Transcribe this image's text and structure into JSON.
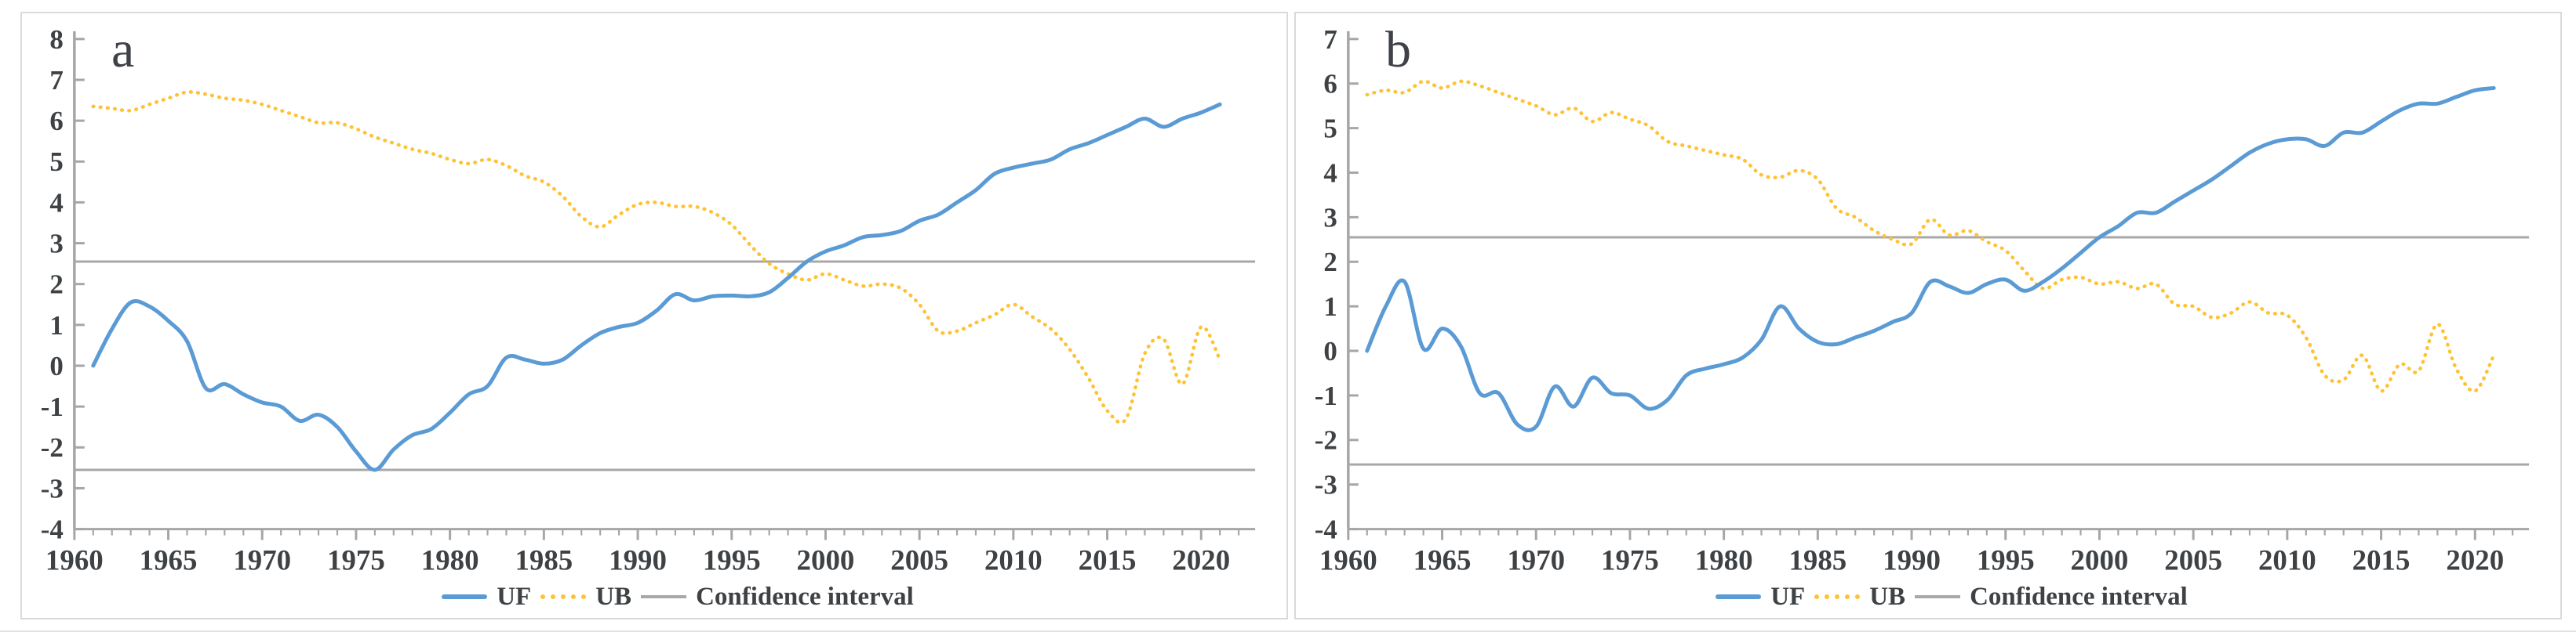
{
  "colors": {
    "uf": "#5b9bd5",
    "ub": "#ffc233",
    "ci": "#a8a8a8",
    "axis": "#a6a6a6",
    "tick_text": "#3f4245",
    "panel_border": "#dadada"
  },
  "legend": {
    "uf": "UF",
    "ub": "UB",
    "ci": "Confidence interval"
  },
  "chart_data": [
    {
      "type": "line",
      "panel_label": "a",
      "xlim": [
        1960,
        2022
      ],
      "ylim": [
        -4,
        8
      ],
      "yticks": [
        8,
        7,
        6,
        5,
        4,
        3,
        2,
        1,
        0,
        -1,
        -2,
        -3,
        -4
      ],
      "xticks": [
        1960,
        1965,
        1970,
        1975,
        1980,
        1985,
        1990,
        1995,
        2000,
        2005,
        2010,
        2015,
        2020
      ],
      "grid": false,
      "legend_position": "bottom",
      "confidence_interval": {
        "upper": 2.55,
        "lower": -2.55
      },
      "years": [
        1961,
        1962,
        1963,
        1964,
        1965,
        1966,
        1967,
        1968,
        1969,
        1970,
        1971,
        1972,
        1973,
        1974,
        1975,
        1976,
        1977,
        1978,
        1979,
        1980,
        1981,
        1982,
        1983,
        1984,
        1985,
        1986,
        1987,
        1988,
        1989,
        1990,
        1991,
        1992,
        1993,
        1994,
        1995,
        1996,
        1997,
        1998,
        1999,
        2000,
        2001,
        2002,
        2003,
        2004,
        2005,
        2006,
        2007,
        2008,
        2009,
        2010,
        2011,
        2012,
        2013,
        2014,
        2015,
        2016,
        2017,
        2018,
        2019,
        2020,
        2021
      ],
      "series": [
        {
          "name": "UF",
          "style": "solid",
          "color_key": "uf",
          "values": [
            0.0,
            0.9,
            1.55,
            1.45,
            1.1,
            0.6,
            -0.55,
            -0.45,
            -0.7,
            -0.9,
            -1.0,
            -1.35,
            -1.2,
            -1.5,
            -2.1,
            -2.55,
            -2.05,
            -1.7,
            -1.55,
            -1.15,
            -0.7,
            -0.5,
            0.2,
            0.15,
            0.05,
            0.15,
            0.5,
            0.8,
            0.95,
            1.05,
            1.35,
            1.75,
            1.6,
            1.7,
            1.72,
            1.7,
            1.8,
            2.15,
            2.55,
            2.8,
            2.95,
            3.15,
            3.2,
            3.3,
            3.55,
            3.7,
            4.0,
            4.3,
            4.7,
            4.85,
            4.95,
            5.05,
            5.3,
            5.45,
            5.65,
            5.85,
            6.05,
            5.85,
            6.05,
            6.2,
            6.4
          ]
        },
        {
          "name": "UB",
          "style": "dotted",
          "color_key": "ub",
          "values": [
            6.35,
            6.3,
            6.25,
            6.4,
            6.55,
            6.7,
            6.65,
            6.55,
            6.5,
            6.4,
            6.25,
            6.1,
            5.95,
            5.95,
            5.8,
            5.6,
            5.45,
            5.3,
            5.2,
            5.05,
            4.95,
            5.05,
            4.9,
            4.65,
            4.5,
            4.15,
            3.65,
            3.4,
            3.7,
            3.95,
            4.0,
            3.9,
            3.9,
            3.75,
            3.45,
            2.95,
            2.5,
            2.25,
            2.1,
            2.25,
            2.1,
            1.95,
            2.0,
            1.9,
            1.5,
            0.85,
            0.85,
            1.05,
            1.25,
            1.5,
            1.2,
            0.9,
            0.4,
            -0.3,
            -1.1,
            -1.3,
            0.3,
            0.65,
            -0.45,
            0.95,
            0.15
          ]
        }
      ]
    },
    {
      "type": "line",
      "panel_label": "b",
      "xlim": [
        1960,
        2022
      ],
      "ylim": [
        -4,
        7
      ],
      "yticks": [
        7,
        6,
        5,
        4,
        3,
        2,
        1,
        0,
        -1,
        -2,
        -3,
        -4
      ],
      "xticks": [
        1960,
        1965,
        1970,
        1975,
        1980,
        1985,
        1990,
        1995,
        2000,
        2005,
        2010,
        2015,
        2020
      ],
      "grid": false,
      "legend_position": "bottom",
      "confidence_interval": {
        "upper": 2.55,
        "lower": -2.55
      },
      "years": [
        1961,
        1962,
        1963,
        1964,
        1965,
        1966,
        1967,
        1968,
        1969,
        1970,
        1971,
        1972,
        1973,
        1974,
        1975,
        1976,
        1977,
        1978,
        1979,
        1980,
        1981,
        1982,
        1983,
        1984,
        1985,
        1986,
        1987,
        1988,
        1989,
        1990,
        1991,
        1992,
        1993,
        1994,
        1995,
        1996,
        1997,
        1998,
        1999,
        2000,
        2001,
        2002,
        2003,
        2004,
        2005,
        2006,
        2007,
        2008,
        2009,
        2010,
        2011,
        2012,
        2013,
        2014,
        2015,
        2016,
        2017,
        2018,
        2019,
        2020,
        2021
      ],
      "series": [
        {
          "name": "UF",
          "style": "solid",
          "color_key": "uf",
          "values": [
            0.0,
            1.0,
            1.55,
            0.05,
            0.5,
            0.1,
            -0.95,
            -0.95,
            -1.65,
            -1.7,
            -0.8,
            -1.25,
            -0.6,
            -0.95,
            -1.0,
            -1.3,
            -1.1,
            -0.55,
            -0.4,
            -0.3,
            -0.15,
            0.25,
            1.0,
            0.5,
            0.2,
            0.15,
            0.3,
            0.45,
            0.65,
            0.85,
            1.55,
            1.45,
            1.3,
            1.5,
            1.6,
            1.35,
            1.55,
            1.85,
            2.2,
            2.55,
            2.8,
            3.1,
            3.1,
            3.35,
            3.6,
            3.85,
            4.15,
            4.45,
            4.65,
            4.75,
            4.75,
            4.6,
            4.9,
            4.9,
            5.15,
            5.4,
            5.55,
            5.55,
            5.7,
            5.85,
            5.9
          ]
        },
        {
          "name": "UB",
          "style": "dotted",
          "color_key": "ub",
          "values": [
            5.75,
            5.85,
            5.8,
            6.05,
            5.9,
            6.05,
            5.95,
            5.8,
            5.65,
            5.5,
            5.3,
            5.45,
            5.15,
            5.35,
            5.2,
            5.05,
            4.7,
            4.6,
            4.5,
            4.4,
            4.3,
            3.95,
            3.9,
            4.05,
            3.85,
            3.2,
            3.0,
            2.7,
            2.5,
            2.4,
            2.95,
            2.6,
            2.7,
            2.45,
            2.25,
            1.8,
            1.4,
            1.6,
            1.65,
            1.5,
            1.55,
            1.4,
            1.5,
            1.05,
            1.0,
            0.75,
            0.85,
            1.1,
            0.85,
            0.8,
            0.3,
            -0.55,
            -0.65,
            -0.1,
            -0.9,
            -0.3,
            -0.45,
            0.6,
            -0.4,
            -0.9,
            -0.1
          ]
        }
      ]
    }
  ]
}
